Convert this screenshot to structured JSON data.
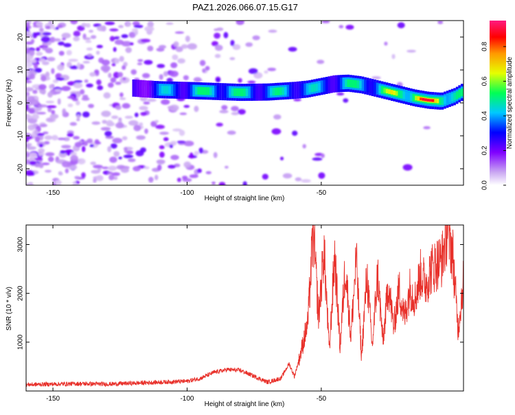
{
  "chart_data": [
    {
      "type": "heatmap",
      "title": "PAZ1.2026.066.07.15.G17",
      "xlabel": "Height of straight line (km)",
      "ylabel": "Frequency (Hz)",
      "xlim": [
        -160,
        3
      ],
      "ylim": [
        -25,
        25
      ],
      "xticks": [
        -150,
        -100,
        -50
      ],
      "xtick_labels": [
        "-150",
        "-100",
        "-50"
      ],
      "yticks": [
        -20,
        -10,
        0,
        10,
        20
      ],
      "ytick_labels": [
        "-20",
        "-10",
        "0",
        "10",
        "20"
      ],
      "ridge": {
        "x": [
          -120,
          -115,
          -110,
          -100,
          -90,
          -80,
          -70,
          -60,
          -55,
          -50,
          -45,
          -40,
          -35,
          -30,
          -25,
          -20,
          -15,
          -10,
          -5,
          0,
          3
        ],
        "freq": [
          4.5,
          4.2,
          4.0,
          3.8,
          3.5,
          3.2,
          3.3,
          3.8,
          4.2,
          5.0,
          5.8,
          6.0,
          5.5,
          4.5,
          3.5,
          2.5,
          1.5,
          0.8,
          0.5,
          2.0,
          3.5
        ],
        "amp": [
          0.25,
          0.35,
          0.4,
          0.45,
          0.55,
          0.5,
          0.45,
          0.5,
          0.45,
          0.4,
          0.45,
          0.5,
          0.5,
          0.55,
          0.6,
          0.7,
          0.85,
          0.9,
          0.85,
          0.6,
          0.45
        ]
      },
      "noise_region": {
        "x_from": -160,
        "x_to": -100,
        "density": "high"
      },
      "colorbar": {
        "label": "Normalized spectral amplitude",
        "range": [
          0.0,
          0.95
        ],
        "ticks": [
          0.0,
          0.2,
          0.4,
          0.6,
          0.8
        ],
        "tick_labels": [
          "0.0",
          "0.2",
          "0.4",
          "0.6",
          "0.8"
        ],
        "colors": [
          "#ffffff",
          "#c9a6f2",
          "#7f00ff",
          "#0000ff",
          "#00c8ff",
          "#00ff55",
          "#e6ff00",
          "#ff9900",
          "#ff0000",
          "#ff1a80"
        ]
      }
    },
    {
      "type": "line",
      "xlabel": "Height of straight line (km)",
      "ylabel": "SNR (10 * v/v)",
      "xlim": [
        -160,
        3
      ],
      "ylim": [
        0,
        3400
      ],
      "xticks": [
        -150,
        -100,
        -50
      ],
      "xtick_labels": [
        "-150",
        "-100",
        "-50"
      ],
      "yticks": [
        1000,
        2000,
        3000
      ],
      "ytick_labels": [
        "1000",
        "2000",
        "3000"
      ],
      "color": "#e8302a",
      "series": [
        {
          "name": "SNR",
          "x": [
            -160,
            -150,
            -140,
            -130,
            -120,
            -110,
            -100,
            -95,
            -90,
            -85,
            -80,
            -75,
            -70,
            -65,
            -62,
            -60,
            -58,
            -55,
            -53,
            -51,
            -49,
            -47,
            -45,
            -43,
            -41,
            -39,
            -37,
            -35,
            -33,
            -31,
            -29,
            -27,
            -25,
            -23,
            -21,
            -19,
            -17,
            -15,
            -13,
            -11,
            -9,
            -7,
            -5,
            -3,
            -1,
            1,
            3
          ],
          "y": [
            130,
            140,
            150,
            140,
            160,
            180,
            200,
            260,
            380,
            440,
            420,
            300,
            180,
            260,
            560,
            300,
            700,
            1400,
            3300,
            1500,
            2900,
            800,
            2800,
            900,
            2600,
            1100,
            2700,
            700,
            2400,
            900,
            2400,
            1000,
            2200,
            1300,
            2100,
            1500,
            2100,
            1900,
            2400,
            2200,
            2500,
            2600,
            2700,
            3350,
            2800,
            1250,
            2300
          ],
          "peak_labels": []
        }
      ]
    }
  ]
}
